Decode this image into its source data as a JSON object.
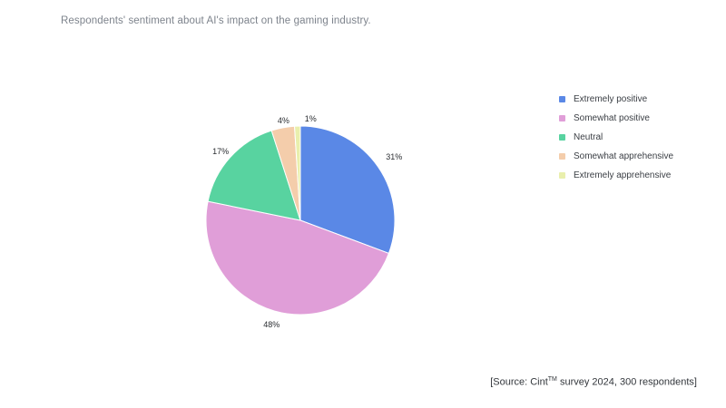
{
  "title": "Respondents' sentiment about AI's impact on the gaming industry.",
  "chart_data": {
    "type": "pie",
    "title": "Respondents' sentiment about AI's impact on the gaming industry.",
    "legend_position": "right",
    "start_angle": "top",
    "direction": "clockwise",
    "slices": [
      {
        "label": "Extremely positive",
        "value": 31,
        "pct_label": "31%",
        "color": "#5a88e6"
      },
      {
        "label": "Somewhat positive",
        "value": 48,
        "pct_label": "48%",
        "color": "#e09ed8"
      },
      {
        "label": "Neutral",
        "value": 17,
        "pct_label": "17%",
        "color": "#58d3a0"
      },
      {
        "label": "Somewhat apprehensive",
        "value": 4,
        "pct_label": "4%",
        "color": "#f4cdab"
      },
      {
        "label": "Extremely apprehensive",
        "value": 1,
        "pct_label": "1%",
        "color": "#e9efad"
      }
    ]
  },
  "source_note": {
    "prefix": "[Source: Cint",
    "sup": "TM",
    "suffix": " survey 2024, 300 respondents]"
  }
}
